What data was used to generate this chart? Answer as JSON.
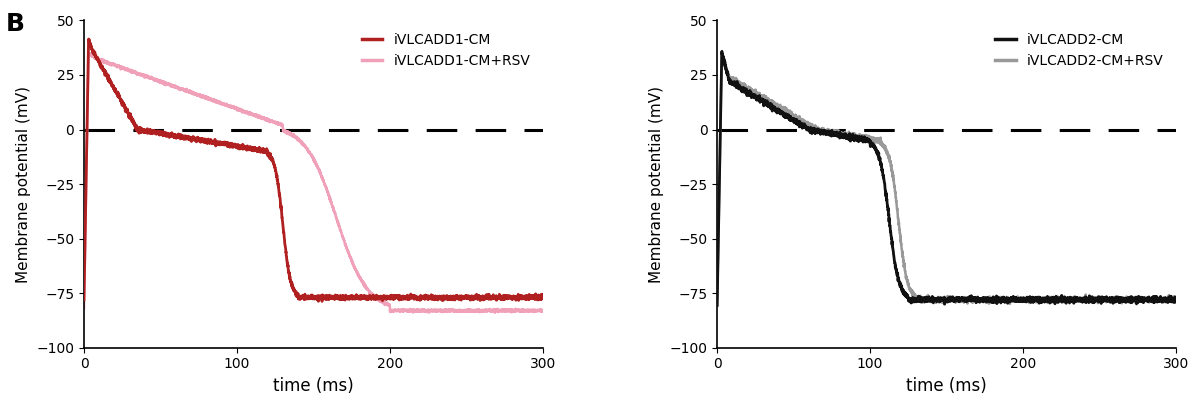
{
  "panel_label": "B",
  "panel_label_fontsize": 18,
  "panel_label_fontweight": "bold",
  "left": {
    "line1_label": "iVLCADD1-CM",
    "line1_color": "#B02020",
    "line2_label": "iVLCADD1-CM+RSV",
    "line2_color": "#F0A0B8",
    "ylabel": "Membrane potential (mV)",
    "xlabel": "time (ms)"
  },
  "right": {
    "line1_label": "iVLCADD2-CM",
    "line1_color": "#111111",
    "line2_label": "iVLCADD2-CM+RSV",
    "line2_color": "#999999",
    "ylabel": "Membrane potential (mV)",
    "xlabel": "time (ms)"
  },
  "xlim": [
    0,
    300
  ],
  "ylim": [
    -100,
    50
  ],
  "yticks": [
    -100,
    -75,
    -50,
    -25,
    0,
    25,
    50
  ],
  "xticks": [
    0,
    100,
    200,
    300
  ],
  "dashed_y": 0,
  "figsize": [
    12.0,
    4.09
  ],
  "dpi": 100
}
